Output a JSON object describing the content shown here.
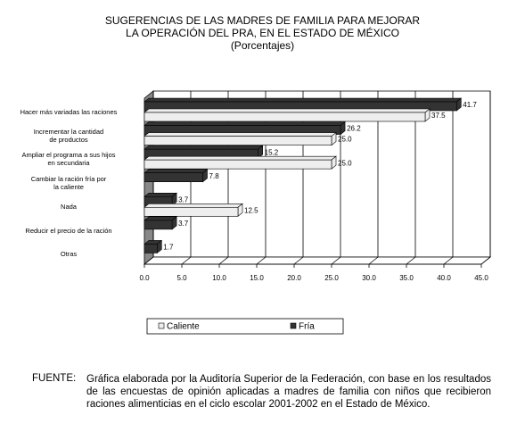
{
  "chart_data": {
    "type": "bar3d_horizontal",
    "title": "SUGERENCIAS DE LAS MADRES DE FAMILIA PARA MEJORAR",
    "title_line2": "LA OPERACIÓN DEL PRA, EN EL ESTADO DE MÉXICO",
    "subtitle": "(Porcentajes)",
    "categories": [
      "Hacer más variadas las raciones",
      "Incrementar la cantidad\nde productos",
      "Ampliar el programa a sus hijos\nen secundaria",
      "Cambiar la ración fría por\nla caliente",
      "Nada",
      "Reducir el precio de la ración",
      "Otras"
    ],
    "series": [
      {
        "name": "Fría",
        "color": "#333333",
        "values": [
          41.7,
          26.2,
          15.2,
          7.8,
          3.7,
          3.7,
          1.7
        ],
        "value_labels": [
          "41.7",
          "26.2",
          "15.2",
          "7.8",
          "3.7",
          "3.7",
          "1.7"
        ]
      },
      {
        "name": "Caliente",
        "color": "#eeeeee",
        "values": [
          37.5,
          25.0,
          25.0,
          null,
          12.5,
          null,
          null
        ],
        "value_labels": [
          "37.5",
          "25.0",
          "25.0",
          null,
          "12.5",
          null,
          null
        ]
      }
    ],
    "xlim": [
      0,
      45
    ],
    "xticks": [
      {
        "value": 0,
        "label": "0.0"
      },
      {
        "value": 5,
        "label": "5.0"
      },
      {
        "value": 10,
        "label": "10.0"
      },
      {
        "value": 15,
        "label": "15.0"
      },
      {
        "value": 20,
        "label": "20.0"
      },
      {
        "value": 25,
        "label": "25.0"
      },
      {
        "value": 30,
        "label": "30.0"
      },
      {
        "value": 35,
        "label": "35.0"
      },
      {
        "value": 40,
        "label": "40.0"
      },
      {
        "value": 45,
        "label": "45.0"
      }
    ],
    "grid": true,
    "source_label": "FUENTE:",
    "source_text": "Gráfica elaborada por la Auditoría Superior de la Federación, con base en los resultados de las encuestas de opinión aplicadas a madres de familia con niños que recibieron raciones alimenticias en el ciclo escolar 2001-2002 en el Estado de México."
  }
}
